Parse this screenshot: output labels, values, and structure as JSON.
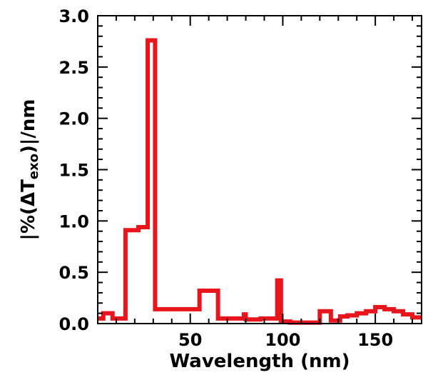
{
  "chart_data": {
    "type": "line",
    "step": "histogram-outline",
    "xlabel": "Wavelength (nm)",
    "ylabel_parts": {
      "pre": "|%(ΔT",
      "sub": "exo",
      "post": ")|/nm"
    },
    "xlim": [
      0,
      175
    ],
    "ylim": [
      0,
      3.0
    ],
    "x_ticks": [
      50,
      100,
      150
    ],
    "y_ticks": [
      "0.0",
      "0.5",
      "1.0",
      "1.5",
      "2.0",
      "2.5",
      "3.0"
    ],
    "grid": false,
    "line_color": "#e8161c",
    "bins": [
      {
        "x0": 0,
        "x1": 3,
        "y": 0.05
      },
      {
        "x0": 3,
        "x1": 8,
        "y": 0.1
      },
      {
        "x0": 8,
        "x1": 15,
        "y": 0.05
      },
      {
        "x0": 15,
        "x1": 22,
        "y": 0.91
      },
      {
        "x0": 22,
        "x1": 27,
        "y": 0.94
      },
      {
        "x0": 27,
        "x1": 31,
        "y": 2.76
      },
      {
        "x0": 31,
        "x1": 55,
        "y": 0.14
      },
      {
        "x0": 55,
        "x1": 65,
        "y": 0.32
      },
      {
        "x0": 65,
        "x1": 79,
        "y": 0.05
      },
      {
        "x0": 79,
        "x1": 80,
        "y": 0.09
      },
      {
        "x0": 80,
        "x1": 88,
        "y": 0.04
      },
      {
        "x0": 88,
        "x1": 97,
        "y": 0.05
      },
      {
        "x0": 97,
        "x1": 99,
        "y": 0.42
      },
      {
        "x0": 99,
        "x1": 104,
        "y": 0.02
      },
      {
        "x0": 104,
        "x1": 120,
        "y": 0.01
      },
      {
        "x0": 120,
        "x1": 126,
        "y": 0.12
      },
      {
        "x0": 126,
        "x1": 131,
        "y": 0.03
      },
      {
        "x0": 131,
        "x1": 135,
        "y": 0.07
      },
      {
        "x0": 135,
        "x1": 140,
        "y": 0.08
      },
      {
        "x0": 140,
        "x1": 145,
        "y": 0.1
      },
      {
        "x0": 145,
        "x1": 150,
        "y": 0.12
      },
      {
        "x0": 150,
        "x1": 155,
        "y": 0.16
      },
      {
        "x0": 155,
        "x1": 160,
        "y": 0.14
      },
      {
        "x0": 160,
        "x1": 165,
        "y": 0.12
      },
      {
        "x0": 165,
        "x1": 170,
        "y": 0.09
      },
      {
        "x0": 170,
        "x1": 175,
        "y": 0.06
      }
    ]
  }
}
